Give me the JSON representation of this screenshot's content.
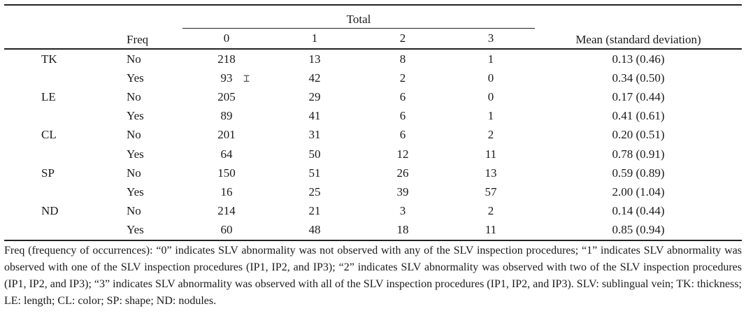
{
  "header": {
    "freq_label": "Freq",
    "total_label": "Total",
    "mean_label": "Mean (standard deviation)",
    "levels": [
      "0",
      "1",
      "2",
      "3"
    ]
  },
  "rows": [
    {
      "variable": "TK",
      "freq": "No",
      "counts": [
        "218",
        "13",
        "8",
        "1"
      ],
      "mean_sd": "0.13 (0.46)"
    },
    {
      "variable": "",
      "freq": "Yes",
      "counts": [
        "93",
        "42",
        "2",
        "0"
      ],
      "mean_sd": "0.34 (0.50)"
    },
    {
      "variable": "LE",
      "freq": "No",
      "counts": [
        "205",
        "29",
        "6",
        "0"
      ],
      "mean_sd": "0.17 (0.44)"
    },
    {
      "variable": "",
      "freq": "Yes",
      "counts": [
        "89",
        "41",
        "6",
        "1"
      ],
      "mean_sd": "0.41 (0.61)"
    },
    {
      "variable": "CL",
      "freq": "No",
      "counts": [
        "201",
        "31",
        "6",
        "2"
      ],
      "mean_sd": "0.20 (0.51)"
    },
    {
      "variable": "",
      "freq": "Yes",
      "counts": [
        "64",
        "50",
        "12",
        "11"
      ],
      "mean_sd": "0.78 (0.91)"
    },
    {
      "variable": "SP",
      "freq": "No",
      "counts": [
        "150",
        "51",
        "26",
        "13"
      ],
      "mean_sd": "0.59 (0.89)"
    },
    {
      "variable": "",
      "freq": "Yes",
      "counts": [
        "16",
        "25",
        "39",
        "57"
      ],
      "mean_sd": "2.00 (1.04)"
    },
    {
      "variable": "ND",
      "freq": "No",
      "counts": [
        "214",
        "21",
        "3",
        "2"
      ],
      "mean_sd": "0.14 (0.44)"
    },
    {
      "variable": "",
      "freq": "Yes",
      "counts": [
        "60",
        "48",
        "18",
        "11"
      ],
      "mean_sd": "0.85 (0.94)"
    }
  ],
  "footnote": "Freq (frequency of occurrences): “0” indicates SLV abnormality was not observed with any of the SLV inspection procedures; “1” indicates SLV abnormality was observed with one of the SLV inspection procedures (IP1, IP2, and IP3); “2” indicates SLV abnormality was observed with two of the SLV inspection procedures (IP1, IP2, and IP3); “3” indicates SLV abnormality was observed with all of the SLV inspection procedures (IP1, IP2, and IP3). SLV: sublingual vein; TK: thickness; LE: length; CL: color; SP: shape; ND: nodules.",
  "cursor": {
    "icon": "text-cursor-icon",
    "glyph": "⌶"
  }
}
